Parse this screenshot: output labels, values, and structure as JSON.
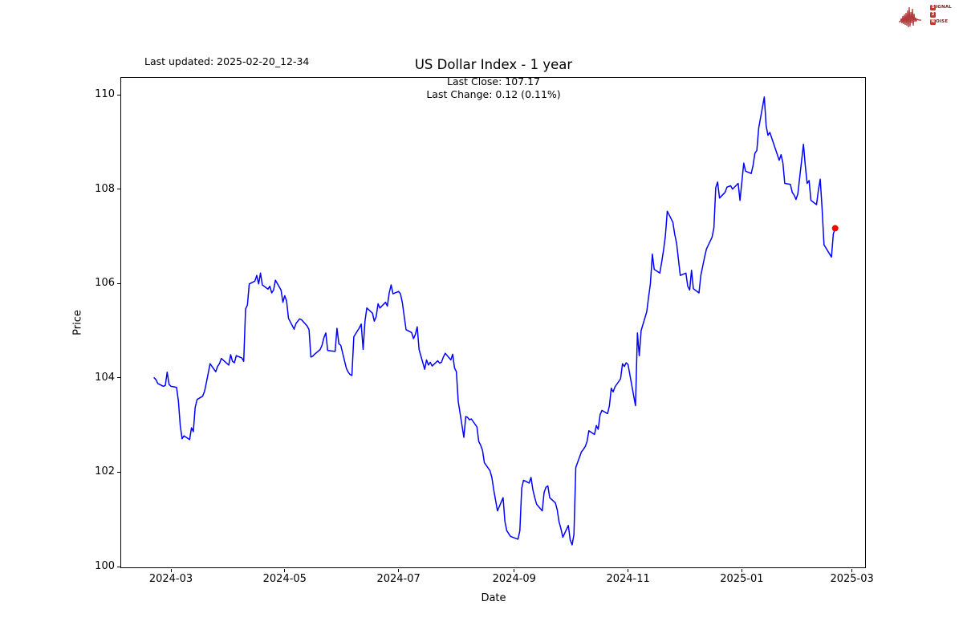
{
  "header": {
    "last_updated": "Last updated: 2025-02-20_12-34"
  },
  "logo": {
    "signal_initial": "S",
    "signal_rest": "IGNAL",
    "middle": "2",
    "noise_initial": "N",
    "noise_rest": "OISE",
    "box_color": "#c0392b",
    "text_color": "#6b1d1d",
    "wave_color": "#b23b3b"
  },
  "chart_data": {
    "type": "line",
    "title": "US Dollar Index - 1 year",
    "subtitle_line1": "Last Close: 107.17",
    "subtitle_line2": "Last Change: 0.12 (0.11%)",
    "xlabel": "Date",
    "ylabel": "Price",
    "x_ticks": [
      "2024-03",
      "2024-05",
      "2024-07",
      "2024-09",
      "2024-11",
      "2025-01",
      "2025-03"
    ],
    "y_ticks": [
      100,
      102,
      104,
      106,
      108,
      110
    ],
    "ylim": [
      99.95,
      110.37
    ],
    "xlim": [
      "2024-02-03",
      "2025-03-09"
    ],
    "grid": false,
    "legend": null,
    "line_color": "#0000ff",
    "marker_color": "#ff0000",
    "last_close": 107.17,
    "last_change": 0.12,
    "last_change_pct": "0.11%",
    "series": [
      {
        "name": "US Dollar Index",
        "points": [
          [
            "2024-02-21",
            104.0
          ],
          [
            "2024-02-22",
            103.96
          ],
          [
            "2024-02-23",
            103.88
          ],
          [
            "2024-02-26",
            103.82
          ],
          [
            "2024-02-27",
            103.84
          ],
          [
            "2024-02-28",
            104.12
          ],
          [
            "2024-02-29",
            103.86
          ],
          [
            "2024-03-01",
            103.82
          ],
          [
            "2024-03-04",
            103.8
          ],
          [
            "2024-03-05",
            103.51
          ],
          [
            "2024-03-06",
            102.99
          ],
          [
            "2024-03-07",
            102.71
          ],
          [
            "2024-03-08",
            102.77
          ],
          [
            "2024-03-11",
            102.69
          ],
          [
            "2024-03-12",
            102.94
          ],
          [
            "2024-03-13",
            102.86
          ],
          [
            "2024-03-14",
            103.37
          ],
          [
            "2024-03-15",
            103.54
          ],
          [
            "2024-03-18",
            103.61
          ],
          [
            "2024-03-19",
            103.71
          ],
          [
            "2024-03-20",
            103.9
          ],
          [
            "2024-03-21",
            104.1
          ],
          [
            "2024-03-22",
            104.3
          ],
          [
            "2024-03-25",
            104.13
          ],
          [
            "2024-03-26",
            104.24
          ],
          [
            "2024-03-27",
            104.3
          ],
          [
            "2024-03-28",
            104.41
          ],
          [
            "2024-04-01",
            104.27
          ],
          [
            "2024-04-02",
            104.49
          ],
          [
            "2024-04-03",
            104.35
          ],
          [
            "2024-04-04",
            104.32
          ],
          [
            "2024-04-05",
            104.47
          ],
          [
            "2024-04-08",
            104.42
          ],
          [
            "2024-04-09",
            104.35
          ],
          [
            "2024-04-10",
            105.46
          ],
          [
            "2024-04-11",
            105.54
          ],
          [
            "2024-04-12",
            105.99
          ],
          [
            "2024-04-15",
            106.05
          ],
          [
            "2024-04-16",
            106.17
          ],
          [
            "2024-04-17",
            105.99
          ],
          [
            "2024-04-18",
            106.22
          ],
          [
            "2024-04-19",
            105.97
          ],
          [
            "2024-04-22",
            105.88
          ],
          [
            "2024-04-23",
            105.94
          ],
          [
            "2024-04-24",
            105.8
          ],
          [
            "2024-04-25",
            105.86
          ],
          [
            "2024-04-26",
            106.07
          ],
          [
            "2024-04-29",
            105.86
          ],
          [
            "2024-04-30",
            105.6
          ],
          [
            "2024-05-01",
            105.74
          ],
          [
            "2024-05-02",
            105.63
          ],
          [
            "2024-05-03",
            105.26
          ],
          [
            "2024-05-06",
            105.03
          ],
          [
            "2024-05-07",
            105.15
          ],
          [
            "2024-05-08",
            105.2
          ],
          [
            "2024-05-09",
            105.25
          ],
          [
            "2024-05-10",
            105.23
          ],
          [
            "2024-05-13",
            105.1
          ],
          [
            "2024-05-14",
            105.02
          ],
          [
            "2024-05-15",
            104.44
          ],
          [
            "2024-05-16",
            104.46
          ],
          [
            "2024-05-17",
            104.5
          ],
          [
            "2024-05-20",
            104.6
          ],
          [
            "2024-05-21",
            104.69
          ],
          [
            "2024-05-22",
            104.85
          ],
          [
            "2024-05-23",
            104.95
          ],
          [
            "2024-05-24",
            104.58
          ],
          [
            "2024-05-28",
            104.56
          ],
          [
            "2024-05-29",
            105.05
          ],
          [
            "2024-05-30",
            104.72
          ],
          [
            "2024-05-31",
            104.69
          ],
          [
            "2024-06-03",
            104.2
          ],
          [
            "2024-06-04",
            104.12
          ],
          [
            "2024-06-05",
            104.07
          ],
          [
            "2024-06-06",
            104.05
          ],
          [
            "2024-06-07",
            104.87
          ],
          [
            "2024-06-10",
            105.06
          ],
          [
            "2024-06-11",
            105.14
          ],
          [
            "2024-06-12",
            104.6
          ],
          [
            "2024-06-13",
            105.2
          ],
          [
            "2024-06-14",
            105.48
          ],
          [
            "2024-06-17",
            105.37
          ],
          [
            "2024-06-18",
            105.2
          ],
          [
            "2024-06-19",
            105.3
          ],
          [
            "2024-06-20",
            105.57
          ],
          [
            "2024-06-21",
            105.48
          ],
          [
            "2024-06-24",
            105.6
          ],
          [
            "2024-06-25",
            105.52
          ],
          [
            "2024-06-26",
            105.8
          ],
          [
            "2024-06-27",
            105.97
          ],
          [
            "2024-06-28",
            105.78
          ],
          [
            "2024-07-01",
            105.83
          ],
          [
            "2024-07-02",
            105.78
          ],
          [
            "2024-07-03",
            105.6
          ],
          [
            "2024-07-05",
            105.02
          ],
          [
            "2024-07-08",
            104.96
          ],
          [
            "2024-07-09",
            104.83
          ],
          [
            "2024-07-10",
            104.92
          ],
          [
            "2024-07-11",
            105.08
          ],
          [
            "2024-07-12",
            104.6
          ],
          [
            "2024-07-15",
            104.18
          ],
          [
            "2024-07-16",
            104.38
          ],
          [
            "2024-07-17",
            104.27
          ],
          [
            "2024-07-18",
            104.33
          ],
          [
            "2024-07-19",
            104.25
          ],
          [
            "2024-07-22",
            104.36
          ],
          [
            "2024-07-23",
            104.31
          ],
          [
            "2024-07-24",
            104.33
          ],
          [
            "2024-07-25",
            104.44
          ],
          [
            "2024-07-26",
            104.52
          ],
          [
            "2024-07-29",
            104.38
          ],
          [
            "2024-07-30",
            104.5
          ],
          [
            "2024-07-31",
            104.21
          ],
          [
            "2024-08-01",
            104.13
          ],
          [
            "2024-08-02",
            103.5
          ],
          [
            "2024-08-05",
            102.74
          ],
          [
            "2024-08-06",
            103.18
          ],
          [
            "2024-08-07",
            103.16
          ],
          [
            "2024-08-08",
            103.11
          ],
          [
            "2024-08-09",
            103.13
          ],
          [
            "2024-08-12",
            102.96
          ],
          [
            "2024-08-13",
            102.65
          ],
          [
            "2024-08-14",
            102.57
          ],
          [
            "2024-08-15",
            102.46
          ],
          [
            "2024-08-16",
            102.2
          ],
          [
            "2024-08-19",
            102.03
          ],
          [
            "2024-08-20",
            101.89
          ],
          [
            "2024-08-21",
            101.63
          ],
          [
            "2024-08-22",
            101.41
          ],
          [
            "2024-08-23",
            101.18
          ],
          [
            "2024-08-26",
            101.46
          ],
          [
            "2024-08-27",
            100.95
          ],
          [
            "2024-08-28",
            100.76
          ],
          [
            "2024-08-29",
            100.7
          ],
          [
            "2024-08-30",
            100.64
          ],
          [
            "2024-09-03",
            100.58
          ],
          [
            "2024-09-04",
            100.76
          ],
          [
            "2024-09-05",
            101.66
          ],
          [
            "2024-09-06",
            101.83
          ],
          [
            "2024-09-09",
            101.77
          ],
          [
            "2024-09-10",
            101.89
          ],
          [
            "2024-09-11",
            101.63
          ],
          [
            "2024-09-12",
            101.46
          ],
          [
            "2024-09-13",
            101.32
          ],
          [
            "2024-09-16",
            101.18
          ],
          [
            "2024-09-17",
            101.57
          ],
          [
            "2024-09-18",
            101.68
          ],
          [
            "2024-09-19",
            101.71
          ],
          [
            "2024-09-20",
            101.46
          ],
          [
            "2024-09-23",
            101.35
          ],
          [
            "2024-09-24",
            101.21
          ],
          [
            "2024-09-25",
            100.95
          ],
          [
            "2024-09-26",
            100.81
          ],
          [
            "2024-09-27",
            100.62
          ],
          [
            "2024-09-30",
            100.87
          ],
          [
            "2024-10-01",
            100.57
          ],
          [
            "2024-10-02",
            100.46
          ],
          [
            "2024-10-03",
            100.68
          ],
          [
            "2024-10-04",
            102.1
          ],
          [
            "2024-10-07",
            102.43
          ],
          [
            "2024-10-08",
            102.48
          ],
          [
            "2024-10-09",
            102.54
          ],
          [
            "2024-10-10",
            102.65
          ],
          [
            "2024-10-11",
            102.88
          ],
          [
            "2024-10-14",
            102.8
          ],
          [
            "2024-10-15",
            102.99
          ],
          [
            "2024-10-16",
            102.91
          ],
          [
            "2024-10-17",
            103.22
          ],
          [
            "2024-10-18",
            103.31
          ],
          [
            "2024-10-21",
            103.24
          ],
          [
            "2024-10-22",
            103.41
          ],
          [
            "2024-10-23",
            103.78
          ],
          [
            "2024-10-24",
            103.7
          ],
          [
            "2024-10-25",
            103.81
          ],
          [
            "2024-10-28",
            103.98
          ],
          [
            "2024-10-29",
            104.3
          ],
          [
            "2024-10-30",
            104.24
          ],
          [
            "2024-10-31",
            104.32
          ],
          [
            "2024-11-01",
            104.28
          ],
          [
            "2024-11-04",
            103.62
          ],
          [
            "2024-11-05",
            103.41
          ],
          [
            "2024-11-06",
            104.95
          ],
          [
            "2024-11-07",
            104.47
          ],
          [
            "2024-11-08",
            105.0
          ],
          [
            "2024-11-11",
            105.4
          ],
          [
            "2024-11-12",
            105.71
          ],
          [
            "2024-11-13",
            106.0
          ],
          [
            "2024-11-14",
            106.62
          ],
          [
            "2024-11-15",
            106.3
          ],
          [
            "2024-11-18",
            106.22
          ],
          [
            "2024-11-19",
            106.45
          ],
          [
            "2024-11-20",
            106.7
          ],
          [
            "2024-11-21",
            107.0
          ],
          [
            "2024-11-22",
            107.53
          ],
          [
            "2024-11-25",
            107.3
          ],
          [
            "2024-11-26",
            107.04
          ],
          [
            "2024-11-27",
            106.85
          ],
          [
            "2024-11-29",
            106.17
          ],
          [
            "2024-12-02",
            106.22
          ],
          [
            "2024-12-03",
            105.94
          ],
          [
            "2024-12-04",
            105.86
          ],
          [
            "2024-12-05",
            106.28
          ],
          [
            "2024-12-06",
            105.89
          ],
          [
            "2024-12-09",
            105.8
          ],
          [
            "2024-12-10",
            106.17
          ],
          [
            "2024-12-11",
            106.36
          ],
          [
            "2024-12-12",
            106.56
          ],
          [
            "2024-12-13",
            106.73
          ],
          [
            "2024-12-16",
            106.98
          ],
          [
            "2024-12-17",
            107.18
          ],
          [
            "2024-12-18",
            108.03
          ],
          [
            "2024-12-19",
            108.15
          ],
          [
            "2024-12-20",
            107.81
          ],
          [
            "2024-12-23",
            107.93
          ],
          [
            "2024-12-24",
            108.04
          ],
          [
            "2024-12-26",
            108.07
          ],
          [
            "2024-12-27",
            108.0
          ],
          [
            "2024-12-30",
            108.12
          ],
          [
            "2024-12-31",
            107.76
          ],
          [
            "2025-01-02",
            108.55
          ],
          [
            "2025-01-03",
            108.38
          ],
          [
            "2025-01-06",
            108.33
          ],
          [
            "2025-01-07",
            108.5
          ],
          [
            "2025-01-08",
            108.76
          ],
          [
            "2025-01-09",
            108.82
          ],
          [
            "2025-01-10",
            109.29
          ],
          [
            "2025-01-13",
            109.95
          ],
          [
            "2025-01-14",
            109.34
          ],
          [
            "2025-01-15",
            109.14
          ],
          [
            "2025-01-16",
            109.2
          ],
          [
            "2025-01-17",
            109.08
          ],
          [
            "2025-01-21",
            108.61
          ],
          [
            "2025-01-22",
            108.73
          ],
          [
            "2025-01-23",
            108.55
          ],
          [
            "2025-01-24",
            108.12
          ],
          [
            "2025-01-27",
            108.1
          ],
          [
            "2025-01-28",
            107.93
          ],
          [
            "2025-01-29",
            107.87
          ],
          [
            "2025-01-30",
            107.78
          ],
          [
            "2025-01-31",
            107.9
          ],
          [
            "2025-02-03",
            108.95
          ],
          [
            "2025-02-04",
            108.49
          ],
          [
            "2025-02-05",
            108.12
          ],
          [
            "2025-02-06",
            108.18
          ],
          [
            "2025-02-07",
            107.76
          ],
          [
            "2025-02-10",
            107.67
          ],
          [
            "2025-02-11",
            107.98
          ],
          [
            "2025-02-12",
            108.21
          ],
          [
            "2025-02-13",
            107.59
          ],
          [
            "2025-02-14",
            106.82
          ],
          [
            "2025-02-18",
            106.56
          ],
          [
            "2025-02-19",
            107.05
          ],
          [
            "2025-02-20",
            107.17
          ]
        ]
      }
    ]
  }
}
